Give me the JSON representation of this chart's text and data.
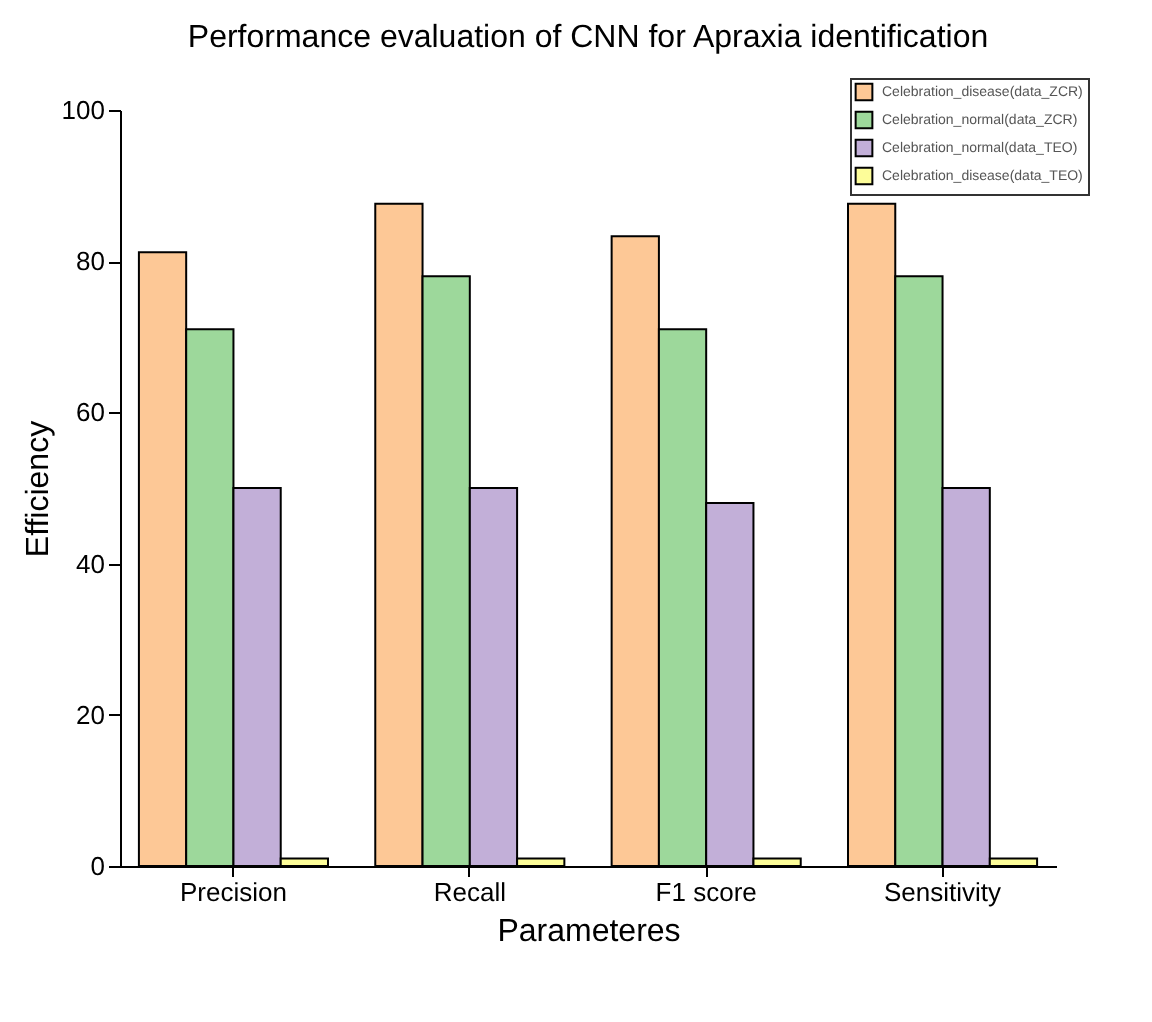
{
  "chart_data": {
    "type": "bar",
    "title": "Performance evaluation of CNN for Apraxia identification",
    "xlabel": "Parameteres",
    "ylabel": "Efficiency",
    "categories": [
      "Precision",
      "Recall",
      "F1 score",
      "Sensitivity"
    ],
    "series": [
      {
        "name": "Celebration_disease(data_ZCR)",
        "color": "#fdc896",
        "values": [
          81.2,
          87.6,
          83.3,
          87.6
        ]
      },
      {
        "name": "Celebration_normal(data_ZCR)",
        "color": "#9dd89b",
        "values": [
          71,
          78,
          71,
          78
        ]
      },
      {
        "name": "Celebration_normal(data_TEO)",
        "color": "#c2afd8",
        "values": [
          50,
          50,
          48,
          50
        ]
      },
      {
        "name": "Celebration_disease(data_TEO)",
        "color": "#fdfd99",
        "values": [
          1,
          1,
          1,
          1
        ]
      }
    ],
    "ylim": [
      0,
      100
    ],
    "yticks": [
      0,
      20,
      40,
      60,
      80,
      100
    ],
    "legend": "top right"
  }
}
